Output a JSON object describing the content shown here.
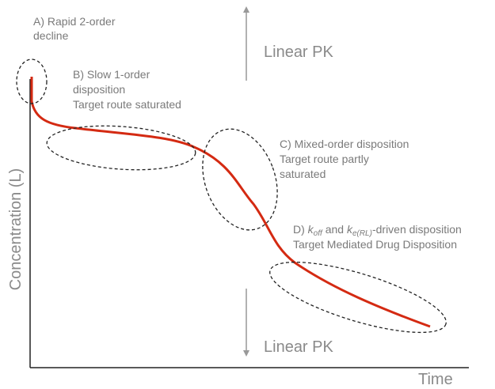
{
  "annotations": {
    "a": {
      "line1": "A) Rapid 2-order",
      "line2": "decline"
    },
    "b": {
      "line1": "B) Slow 1-order",
      "line2": "disposition",
      "line3": "Target route saturated"
    },
    "c": {
      "line1": "C) Mixed-order disposition",
      "line2": "Target route partly",
      "line3": "saturated"
    },
    "d": {
      "k1": "k",
      "sub1": "off",
      "mid": "and",
      "k2": "k",
      "sub2": "e(RL)",
      "rest": "-driven disposition",
      "line2": "Target Mediated Drug Disposition"
    },
    "linear_top": "Linear PK",
    "linear_bottom": "Linear PK"
  },
  "axes": {
    "x_label": "Time",
    "y_label": "Concentration (L)"
  }
}
